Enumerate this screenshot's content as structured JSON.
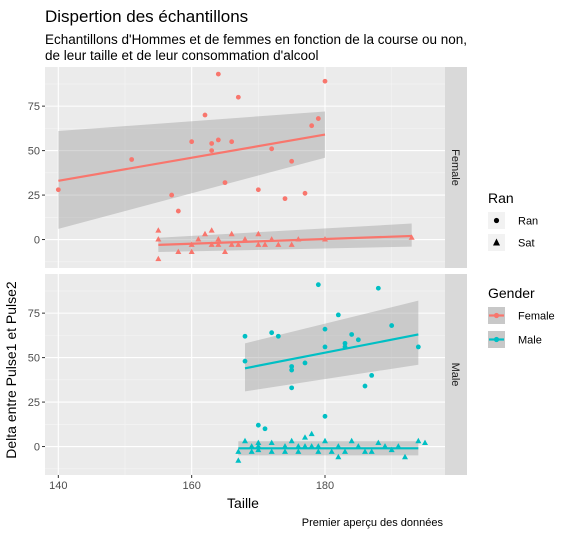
{
  "chart_data": {
    "type": "scatter",
    "title": "Dispertion des échantillons",
    "subtitle_lines": [
      "Echantillons d'Hommes et de femmes en fonction de la course ou non,",
      "de leur taille et de leur consommation d'alcool"
    ],
    "xlabel": "Taille",
    "ylabel": "Delta entre Pulse1 et Pulse2",
    "caption": "Premier aperçu des données",
    "xlim": [
      138,
      198
    ],
    "ylim": [
      -16,
      97
    ],
    "xticks": [
      140,
      160,
      180
    ],
    "yticks": [
      0,
      25,
      50,
      75
    ],
    "grid": true,
    "legends": [
      {
        "title": "Ran",
        "type": "shape",
        "items": [
          {
            "label": "Ran",
            "shape": "circle"
          },
          {
            "label": "Sat",
            "shape": "triangle"
          }
        ]
      },
      {
        "title": "Gender",
        "type": "color",
        "items": [
          {
            "label": "Female",
            "color": "#F8766D"
          },
          {
            "label": "Male",
            "color": "#00BFC4"
          }
        ]
      }
    ],
    "legend_placement": "right",
    "facets": [
      {
        "label": "Female",
        "color": "#F8766D",
        "ran_points": [
          [
            140,
            28
          ],
          [
            151,
            45
          ],
          [
            157,
            25
          ],
          [
            158,
            16
          ],
          [
            160,
            55
          ],
          [
            162,
            70
          ],
          [
            163,
            50
          ],
          [
            163,
            54
          ],
          [
            164,
            93
          ],
          [
            164,
            56
          ],
          [
            165,
            32
          ],
          [
            166,
            55
          ],
          [
            167,
            80
          ],
          [
            170,
            28
          ],
          [
            172,
            51
          ],
          [
            174,
            23
          ],
          [
            175,
            44
          ],
          [
            177,
            26
          ],
          [
            178,
            64
          ],
          [
            179,
            68
          ],
          [
            180,
            89
          ]
        ],
        "sat_points": [
          [
            155,
            5
          ],
          [
            155,
            0
          ],
          [
            155,
            -11
          ],
          [
            158,
            -7
          ],
          [
            160,
            -7
          ],
          [
            160,
            -3
          ],
          [
            161,
            0
          ],
          [
            162,
            3
          ],
          [
            163,
            -3
          ],
          [
            163,
            5
          ],
          [
            164,
            -3
          ],
          [
            164,
            0
          ],
          [
            165,
            -7
          ],
          [
            166,
            -3
          ],
          [
            166,
            3
          ],
          [
            167,
            -3
          ],
          [
            168,
            0
          ],
          [
            170,
            -3
          ],
          [
            170,
            3
          ],
          [
            171,
            -3
          ],
          [
            172,
            0
          ],
          [
            173,
            -3
          ],
          [
            175,
            -3
          ],
          [
            176,
            0
          ],
          [
            180,
            0
          ],
          [
            193,
            1
          ]
        ],
        "ran_fit": {
          "x": [
            140,
            180
          ],
          "y": [
            33,
            59
          ],
          "se_low": [
            6,
            46
          ],
          "se_high": [
            61,
            72
          ]
        },
        "sat_fit": {
          "x": [
            155,
            193
          ],
          "y": [
            -3,
            2
          ],
          "se_low": [
            -7,
            -4
          ],
          "se_high": [
            1,
            9
          ]
        }
      },
      {
        "label": "Male",
        "color": "#00BFC4",
        "ran_points": [
          [
            168,
            48
          ],
          [
            168,
            62
          ],
          [
            170,
            12
          ],
          [
            171,
            10
          ],
          [
            172,
            64
          ],
          [
            173,
            62
          ],
          [
            175,
            45
          ],
          [
            175,
            43
          ],
          [
            175,
            33
          ],
          [
            177,
            47
          ],
          [
            179,
            91
          ],
          [
            180,
            66
          ],
          [
            180,
            56
          ],
          [
            180,
            17
          ],
          [
            182,
            74
          ],
          [
            183,
            56
          ],
          [
            183,
            58
          ],
          [
            184,
            63
          ],
          [
            185,
            60
          ],
          [
            186,
            34
          ],
          [
            187,
            40
          ],
          [
            188,
            89
          ],
          [
            190,
            68
          ],
          [
            194,
            56
          ]
        ],
        "sat_points": [
          [
            167,
            -3
          ],
          [
            167,
            -8
          ],
          [
            168,
            3
          ],
          [
            169,
            -3
          ],
          [
            169,
            0
          ],
          [
            170,
            -2
          ],
          [
            170,
            2
          ],
          [
            170,
            0
          ],
          [
            172,
            -3
          ],
          [
            172,
            2
          ],
          [
            174,
            0
          ],
          [
            174,
            -3
          ],
          [
            175,
            3
          ],
          [
            176,
            0
          ],
          [
            176,
            -3
          ],
          [
            177,
            5
          ],
          [
            177,
            0
          ],
          [
            178,
            7
          ],
          [
            178,
            0
          ],
          [
            179,
            -3
          ],
          [
            179,
            0
          ],
          [
            180,
            3
          ],
          [
            181,
            -3
          ],
          [
            182,
            0
          ],
          [
            182,
            -6
          ],
          [
            183,
            -3
          ],
          [
            184,
            3
          ],
          [
            185,
            0
          ],
          [
            186,
            -3
          ],
          [
            187,
            -3
          ],
          [
            188,
            2
          ],
          [
            189,
            0
          ],
          [
            190,
            -2
          ],
          [
            191,
            0
          ],
          [
            192,
            -6
          ],
          [
            194,
            3
          ],
          [
            195,
            2
          ]
        ],
        "ran_fit": {
          "x": [
            168,
            194
          ],
          "y": [
            44,
            63
          ],
          "se_low": [
            31,
            46
          ],
          "se_high": [
            58,
            82
          ]
        },
        "sat_fit": {
          "x": [
            167,
            194
          ],
          "y": [
            -1,
            -1
          ],
          "se_low": [
            -5,
            -5
          ],
          "se_high": [
            3,
            3
          ]
        }
      }
    ]
  }
}
